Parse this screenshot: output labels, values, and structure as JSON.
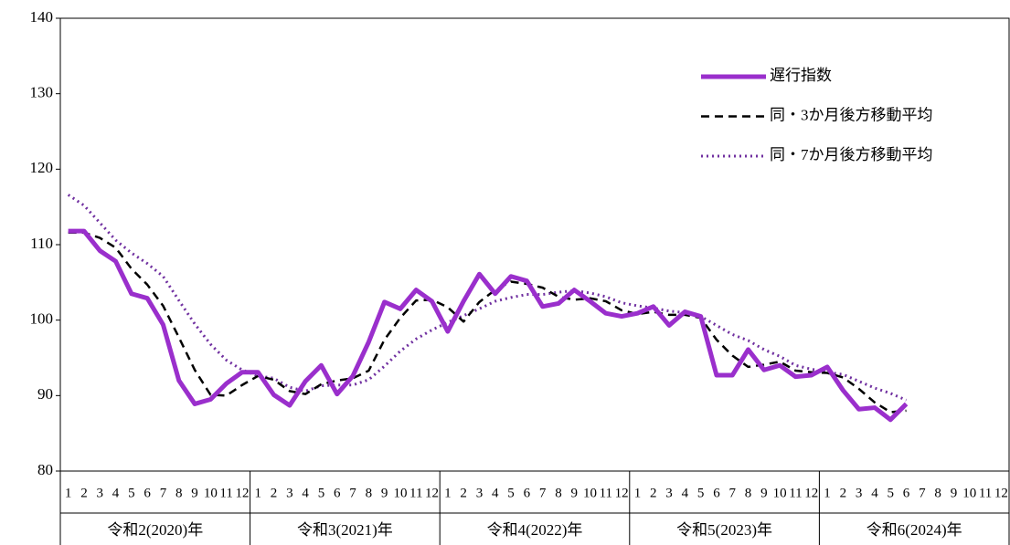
{
  "chart_data": {
    "type": "line",
    "categories": [
      "1",
      "2",
      "3",
      "4",
      "5",
      "6",
      "7",
      "8",
      "9",
      "10",
      "11",
      "12",
      "1",
      "2",
      "3",
      "4",
      "5",
      "6",
      "7",
      "8",
      "9",
      "10",
      "11",
      "12",
      "1",
      "2",
      "3",
      "4",
      "5",
      "6",
      "7",
      "8",
      "9",
      "10",
      "11",
      "12",
      "1",
      "2",
      "3",
      "4",
      "5",
      "6",
      "7",
      "8",
      "9",
      "10",
      "11",
      "12",
      "1",
      "2",
      "3",
      "4",
      "5",
      "6",
      "7",
      "8",
      "9",
      "10",
      "11",
      "12"
    ],
    "groups": [
      "令和2(2020)年",
      "令和3(2021)年",
      "令和4(2022)年",
      "令和5(2023)年",
      "令和6(2024)年"
    ],
    "series": [
      {
        "name": "遅行指数",
        "color": "#9a2fcc",
        "style": "solid",
        "values": [
          111.8,
          111.8,
          109.2,
          107.8,
          103.5,
          102.9,
          99.4,
          92.0,
          88.9,
          89.5,
          91.6,
          93.1,
          93.1,
          90.1,
          88.7,
          91.9,
          94.0,
          90.2,
          92.6,
          97.1,
          102.4,
          101.5,
          104.0,
          102.5,
          98.5,
          102.5,
          106.1,
          103.5,
          105.8,
          105.2,
          101.8,
          102.2,
          104.0,
          102.5,
          100.9,
          100.5,
          100.9,
          101.8,
          99.3,
          101.1,
          100.5,
          92.7,
          92.7,
          96.1,
          93.4,
          94.0,
          92.5,
          92.7,
          93.8,
          90.7,
          88.2,
          88.4,
          86.8,
          88.9,
          null,
          null,
          null,
          null,
          null,
          null
        ]
      },
      {
        "name": "同・3か月後方移動平均",
        "color": "#000000",
        "style": "dashed",
        "values": [
          111.6,
          111.6,
          110.9,
          109.6,
          106.8,
          104.7,
          101.9,
          97.7,
          93.4,
          90.1,
          90.0,
          91.4,
          92.6,
          92.1,
          90.6,
          90.2,
          91.5,
          92.0,
          92.3,
          93.3,
          97.4,
          100.3,
          102.6,
          102.7,
          101.7,
          99.8,
          102.4,
          104.0,
          105.1,
          104.8,
          104.3,
          103.1,
          102.7,
          102.9,
          102.5,
          101.3,
          100.8,
          101.1,
          100.7,
          100.7,
          100.3,
          97.4,
          95.3,
          93.8,
          94.1,
          94.5,
          93.3,
          93.1,
          93.0,
          92.4,
          90.9,
          89.1,
          87.8,
          88.0,
          null,
          null,
          null,
          null,
          null,
          null
        ]
      },
      {
        "name": "同・7か月後方移動平均",
        "color": "#7030a0",
        "style": "dotted",
        "values": [
          116.6,
          115.2,
          112.9,
          110.6,
          108.9,
          107.5,
          105.8,
          102.6,
          99.5,
          96.8,
          94.7,
          93.4,
          92.6,
          92.3,
          91.1,
          90.6,
          91.3,
          91.4,
          91.4,
          92.1,
          93.9,
          95.9,
          97.5,
          98.7,
          99.7,
          100.6,
          101.5,
          102.5,
          103.0,
          103.4,
          103.4,
          103.7,
          103.9,
          103.6,
          103.1,
          102.3,
          101.9,
          101.6,
          101.2,
          101.0,
          100.5,
          99.3,
          98.1,
          97.3,
          96.1,
          95.2,
          94.0,
          93.5,
          93.1,
          92.8,
          91.9,
          91.0,
          90.3,
          89.4,
          null,
          null,
          null,
          null,
          null,
          null
        ]
      }
    ],
    "ylim": [
      80,
      140
    ],
    "yticks": [
      80,
      90,
      100,
      110,
      120,
      130,
      140
    ]
  }
}
